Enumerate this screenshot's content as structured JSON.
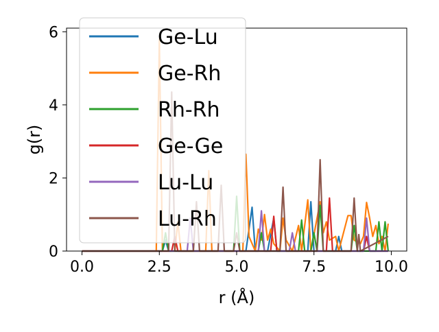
{
  "chart_data": {
    "type": "line",
    "title": "",
    "xlabel": "r (Å)",
    "ylabel": "g(r)",
    "xlim": [
      -0.5,
      10.5
    ],
    "ylim": [
      0,
      6.1
    ],
    "xticks": [
      "0.0",
      "2.5",
      "5.0",
      "7.5",
      "10.0"
    ],
    "yticks": [
      "0",
      "2",
      "4",
      "6"
    ],
    "legend_position": "upper-left",
    "series": [
      {
        "name": "Ge-Lu",
        "color": "#1f77b4",
        "points": [
          [
            0,
            0
          ],
          [
            2.4,
            0
          ],
          [
            2.6,
            0
          ],
          [
            2.7,
            0.3
          ],
          [
            2.8,
            0
          ],
          [
            5.3,
            0
          ],
          [
            5.5,
            1.2
          ],
          [
            5.6,
            0
          ],
          [
            6.0,
            0
          ],
          [
            6.2,
            0.9
          ],
          [
            6.3,
            0
          ],
          [
            7.3,
            0
          ],
          [
            7.4,
            1.35
          ],
          [
            7.5,
            0
          ],
          [
            8.2,
            0
          ],
          [
            8.3,
            0.4
          ],
          [
            8.4,
            0
          ],
          [
            9.1,
            0
          ],
          [
            9.2,
            0.4
          ],
          [
            9.3,
            0
          ],
          [
            9.9,
            0
          ]
        ]
      },
      {
        "name": "Ge-Rh",
        "color": "#ff7f0e",
        "points": [
          [
            0,
            0
          ],
          [
            2.4,
            0
          ],
          [
            2.5,
            5.8
          ],
          [
            2.6,
            0
          ],
          [
            3.0,
            0
          ],
          [
            3.1,
            0.8
          ],
          [
            3.2,
            0
          ],
          [
            4.0,
            0
          ],
          [
            4.1,
            2.2
          ],
          [
            4.2,
            0
          ],
          [
            5.2,
            0
          ],
          [
            5.3,
            2.65
          ],
          [
            5.4,
            0.4
          ],
          [
            5.6,
            0
          ],
          [
            5.7,
            0.6
          ],
          [
            5.8,
            0.3
          ],
          [
            5.9,
            1.0
          ],
          [
            6.0,
            0.3
          ],
          [
            6.1,
            0.6
          ],
          [
            6.2,
            0.2
          ],
          [
            6.4,
            0
          ],
          [
            6.5,
            0.9
          ],
          [
            6.6,
            0.3
          ],
          [
            6.8,
            0
          ],
          [
            7.0,
            0.7
          ],
          [
            7.1,
            0
          ],
          [
            7.3,
            1.4
          ],
          [
            7.4,
            0
          ],
          [
            7.7,
            1.35
          ],
          [
            7.8,
            0.5
          ],
          [
            7.9,
            0.8
          ],
          [
            8.0,
            0.3
          ],
          [
            8.2,
            0.4
          ],
          [
            8.3,
            0
          ],
          [
            8.6,
            0.97
          ],
          [
            8.7,
            0.97
          ],
          [
            8.8,
            0.3
          ],
          [
            9.0,
            0.2
          ],
          [
            9.1,
            0.4
          ],
          [
            9.2,
            1.33
          ],
          [
            9.3,
            0.9
          ],
          [
            9.4,
            0.4
          ],
          [
            9.5,
            0.7
          ],
          [
            9.6,
            0.2
          ],
          [
            9.7,
            0.4
          ],
          [
            9.8,
            0
          ],
          [
            9.9,
            0.75
          ]
        ]
      },
      {
        "name": "Rh-Rh",
        "color": "#2ca02c",
        "points": [
          [
            0,
            0
          ],
          [
            2.4,
            0
          ],
          [
            2.6,
            0
          ],
          [
            2.7,
            0.5
          ],
          [
            2.8,
            0
          ],
          [
            4.9,
            0
          ],
          [
            5.0,
            1.5
          ],
          [
            5.1,
            0
          ],
          [
            5.7,
            0
          ],
          [
            5.8,
            0.5
          ],
          [
            5.9,
            0
          ],
          [
            7.0,
            0
          ],
          [
            7.1,
            0.85
          ],
          [
            7.2,
            0
          ],
          [
            7.4,
            0
          ],
          [
            7.5,
            0.5
          ],
          [
            7.6,
            0
          ],
          [
            7.7,
            1.25
          ],
          [
            7.8,
            0
          ],
          [
            8.7,
            0
          ],
          [
            8.8,
            0.7
          ],
          [
            8.9,
            0
          ],
          [
            9.5,
            0
          ],
          [
            9.6,
            0.8
          ],
          [
            9.7,
            0
          ],
          [
            9.8,
            0.8
          ],
          [
            9.9,
            0
          ]
        ]
      },
      {
        "name": "Ge-Ge",
        "color": "#d62728",
        "points": [
          [
            0,
            0
          ],
          [
            2.9,
            0
          ],
          [
            3.0,
            0.4
          ],
          [
            3.1,
            0
          ],
          [
            6.1,
            0
          ],
          [
            6.2,
            0.95
          ],
          [
            6.3,
            0
          ],
          [
            7.9,
            0
          ],
          [
            8.0,
            1.45
          ],
          [
            8.1,
            0
          ],
          [
            9.1,
            0
          ],
          [
            9.2,
            0.4
          ],
          [
            9.3,
            0
          ],
          [
            9.9,
            0
          ]
        ]
      },
      {
        "name": "Lu-Lu",
        "color": "#9467bd",
        "points": [
          [
            0,
            0
          ],
          [
            3.4,
            0
          ],
          [
            3.5,
            0.9
          ],
          [
            3.6,
            0
          ],
          [
            5.7,
            0
          ],
          [
            5.8,
            1.1
          ],
          [
            5.9,
            0
          ],
          [
            6.7,
            0
          ],
          [
            6.8,
            0.5
          ],
          [
            6.9,
            0
          ],
          [
            9.1,
            0
          ],
          [
            9.2,
            0.9
          ],
          [
            9.3,
            0
          ],
          [
            9.9,
            0
          ]
        ]
      },
      {
        "name": "Lu-Rh",
        "color": "#8c564b",
        "points": [
          [
            0,
            0
          ],
          [
            2.8,
            0
          ],
          [
            2.9,
            4.35
          ],
          [
            3.0,
            0
          ],
          [
            3.6,
            0
          ],
          [
            3.7,
            1.35
          ],
          [
            3.8,
            0
          ],
          [
            4.4,
            0
          ],
          [
            4.5,
            1.8
          ],
          [
            4.6,
            0
          ],
          [
            4.9,
            0
          ],
          [
            5.0,
            0.5
          ],
          [
            5.1,
            0
          ],
          [
            6.4,
            0
          ],
          [
            6.5,
            1.75
          ],
          [
            6.6,
            0
          ],
          [
            7.6,
            0
          ],
          [
            7.7,
            2.5
          ],
          [
            7.8,
            0
          ],
          [
            8.7,
            0
          ],
          [
            8.8,
            1.45
          ],
          [
            8.9,
            0
          ],
          [
            8.95,
            0.45
          ],
          [
            9.0,
            0
          ],
          [
            9.9,
            0.4
          ]
        ]
      }
    ]
  }
}
